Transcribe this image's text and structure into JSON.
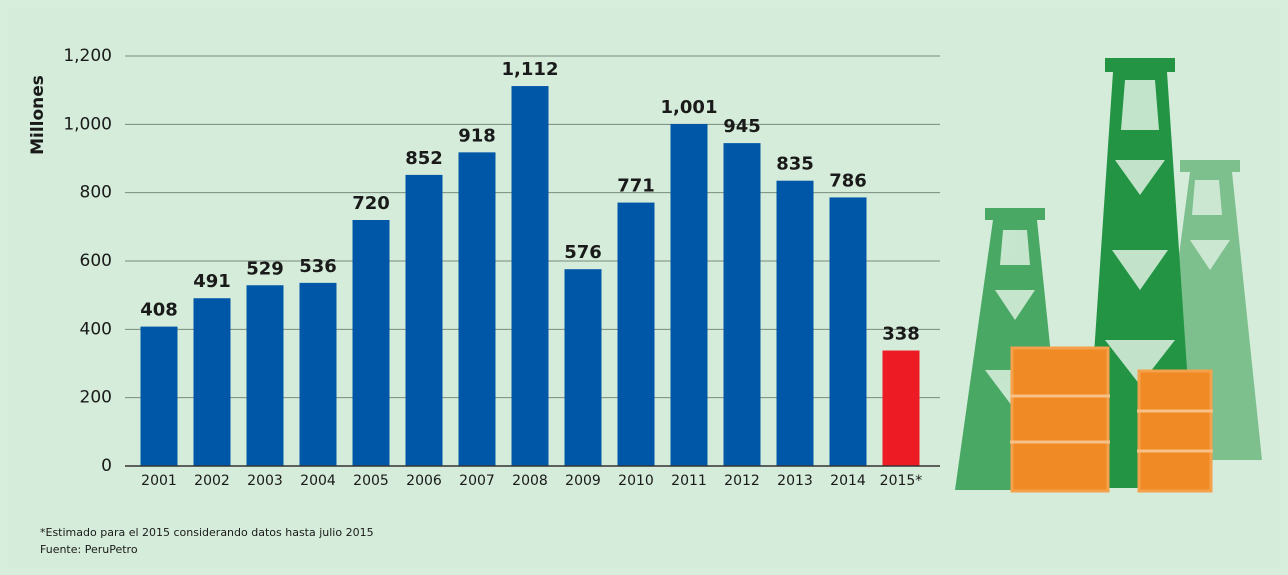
{
  "chart_data": {
    "type": "bar",
    "y_label": "Millones",
    "categories": [
      "2001",
      "2002",
      "2003",
      "2004",
      "2005",
      "2006",
      "2007",
      "2008",
      "2009",
      "2010",
      "2011",
      "2012",
      "2013",
      "2014",
      "2015*"
    ],
    "values": [
      408,
      491,
      529,
      536,
      720,
      852,
      918,
      1112,
      576,
      771,
      1001,
      945,
      835,
      786,
      338
    ],
    "value_labels": [
      "408",
      "491",
      "529",
      "536",
      "720",
      "852",
      "918",
      "1,112",
      "576",
      "771",
      "1,001",
      "945",
      "835",
      "786",
      "338"
    ],
    "colors": [
      "#0057a8",
      "#0057a8",
      "#0057a8",
      "#0057a8",
      "#0057a8",
      "#0057a8",
      "#0057a8",
      "#0057a8",
      "#0057a8",
      "#0057a8",
      "#0057a8",
      "#0057a8",
      "#0057a8",
      "#0057a8",
      "#ed1c24"
    ],
    "ylim": [
      0,
      1200
    ],
    "yticks": [
      0,
      200,
      400,
      600,
      800,
      {
        "value": 1000,
        "label": "1,000"
      },
      {
        "value": 1200,
        "label": "1,200"
      }
    ],
    "grid": true,
    "footnote": "*Estimado para el 2015 considerando datos hasta julio 2015",
    "source": "Fuente: PeruPetro"
  }
}
